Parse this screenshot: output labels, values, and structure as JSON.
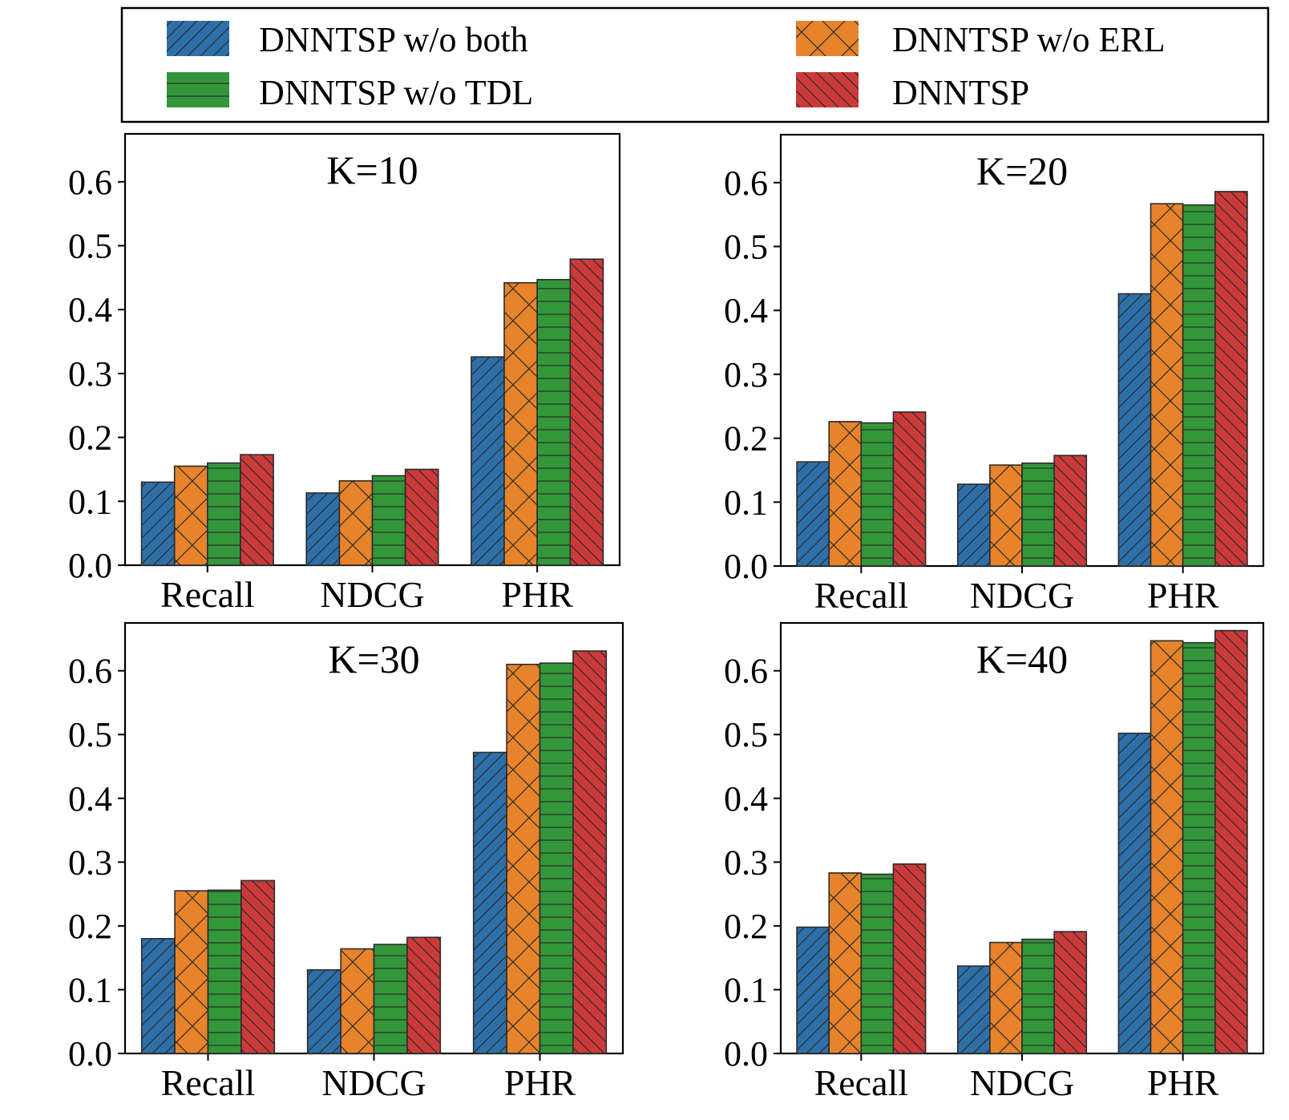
{
  "legend": {
    "entries": [
      {
        "name": "DNNTSP w/o both",
        "color": "#2e6fa8",
        "hatch": "diag-fwd"
      },
      {
        "name": "DNNTSP w/o ERL",
        "color": "#e6832b",
        "hatch": "cross"
      },
      {
        "name": "DNNTSP w/o TDL",
        "color": "#33963a",
        "hatch": "horiz"
      },
      {
        "name": "DNNTSP",
        "color": "#cc3a3a",
        "hatch": "diag-back"
      }
    ]
  },
  "chart_data": [
    {
      "type": "bar",
      "title": "K=10",
      "categories": [
        "Recall",
        "NDCG",
        "PHR"
      ],
      "series": [
        {
          "name": "DNNTSP w/o both",
          "values": [
            0.13,
            0.113,
            0.326
          ]
        },
        {
          "name": "DNNTSP w/o ERL",
          "values": [
            0.155,
            0.132,
            0.442
          ]
        },
        {
          "name": "DNNTSP w/o TDL",
          "values": [
            0.16,
            0.14,
            0.447
          ]
        },
        {
          "name": "DNNTSP",
          "values": [
            0.173,
            0.15,
            0.479
          ]
        }
      ],
      "yticks": [
        "0.0",
        "0.1",
        "0.2",
        "0.3",
        "0.4",
        "0.5",
        "0.6"
      ],
      "ylim": [
        0,
        0.675
      ]
    },
    {
      "type": "bar",
      "title": "K=20",
      "categories": [
        "Recall",
        "NDCG",
        "PHR"
      ],
      "series": [
        {
          "name": "DNNTSP w/o both",
          "values": [
            0.163,
            0.128,
            0.426
          ]
        },
        {
          "name": "DNNTSP w/o ERL",
          "values": [
            0.226,
            0.158,
            0.567
          ]
        },
        {
          "name": "DNNTSP w/o TDL",
          "values": [
            0.224,
            0.161,
            0.565
          ]
        },
        {
          "name": "DNNTSP",
          "values": [
            0.241,
            0.173,
            0.586
          ]
        }
      ],
      "yticks": [
        "0.0",
        "0.1",
        "0.2",
        "0.3",
        "0.4",
        "0.5",
        "0.6"
      ],
      "ylim": [
        0,
        0.675
      ]
    },
    {
      "type": "bar",
      "title": "K=30",
      "categories": [
        "Recall",
        "NDCG",
        "PHR"
      ],
      "series": [
        {
          "name": "DNNTSP w/o both",
          "values": [
            0.18,
            0.131,
            0.472
          ]
        },
        {
          "name": "DNNTSP w/o ERL",
          "values": [
            0.255,
            0.164,
            0.61
          ]
        },
        {
          "name": "DNNTSP w/o TDL",
          "values": [
            0.256,
            0.171,
            0.612
          ]
        },
        {
          "name": "DNNTSP",
          "values": [
            0.271,
            0.182,
            0.631
          ]
        }
      ],
      "yticks": [
        "0.0",
        "0.1",
        "0.2",
        "0.3",
        "0.4",
        "0.5",
        "0.6"
      ],
      "ylim": [
        0,
        0.675
      ]
    },
    {
      "type": "bar",
      "title": "K=40",
      "categories": [
        "Recall",
        "NDCG",
        "PHR"
      ],
      "series": [
        {
          "name": "DNNTSP w/o both",
          "values": [
            0.198,
            0.137,
            0.502
          ]
        },
        {
          "name": "DNNTSP w/o ERL",
          "values": [
            0.283,
            0.174,
            0.647
          ]
        },
        {
          "name": "DNNTSP w/o TDL",
          "values": [
            0.281,
            0.179,
            0.644
          ]
        },
        {
          "name": "DNNTSP",
          "values": [
            0.297,
            0.191,
            0.663
          ]
        }
      ],
      "yticks": [
        "0.0",
        "0.1",
        "0.2",
        "0.3",
        "0.4",
        "0.5",
        "0.6"
      ],
      "ylim": [
        0,
        0.675
      ]
    }
  ]
}
